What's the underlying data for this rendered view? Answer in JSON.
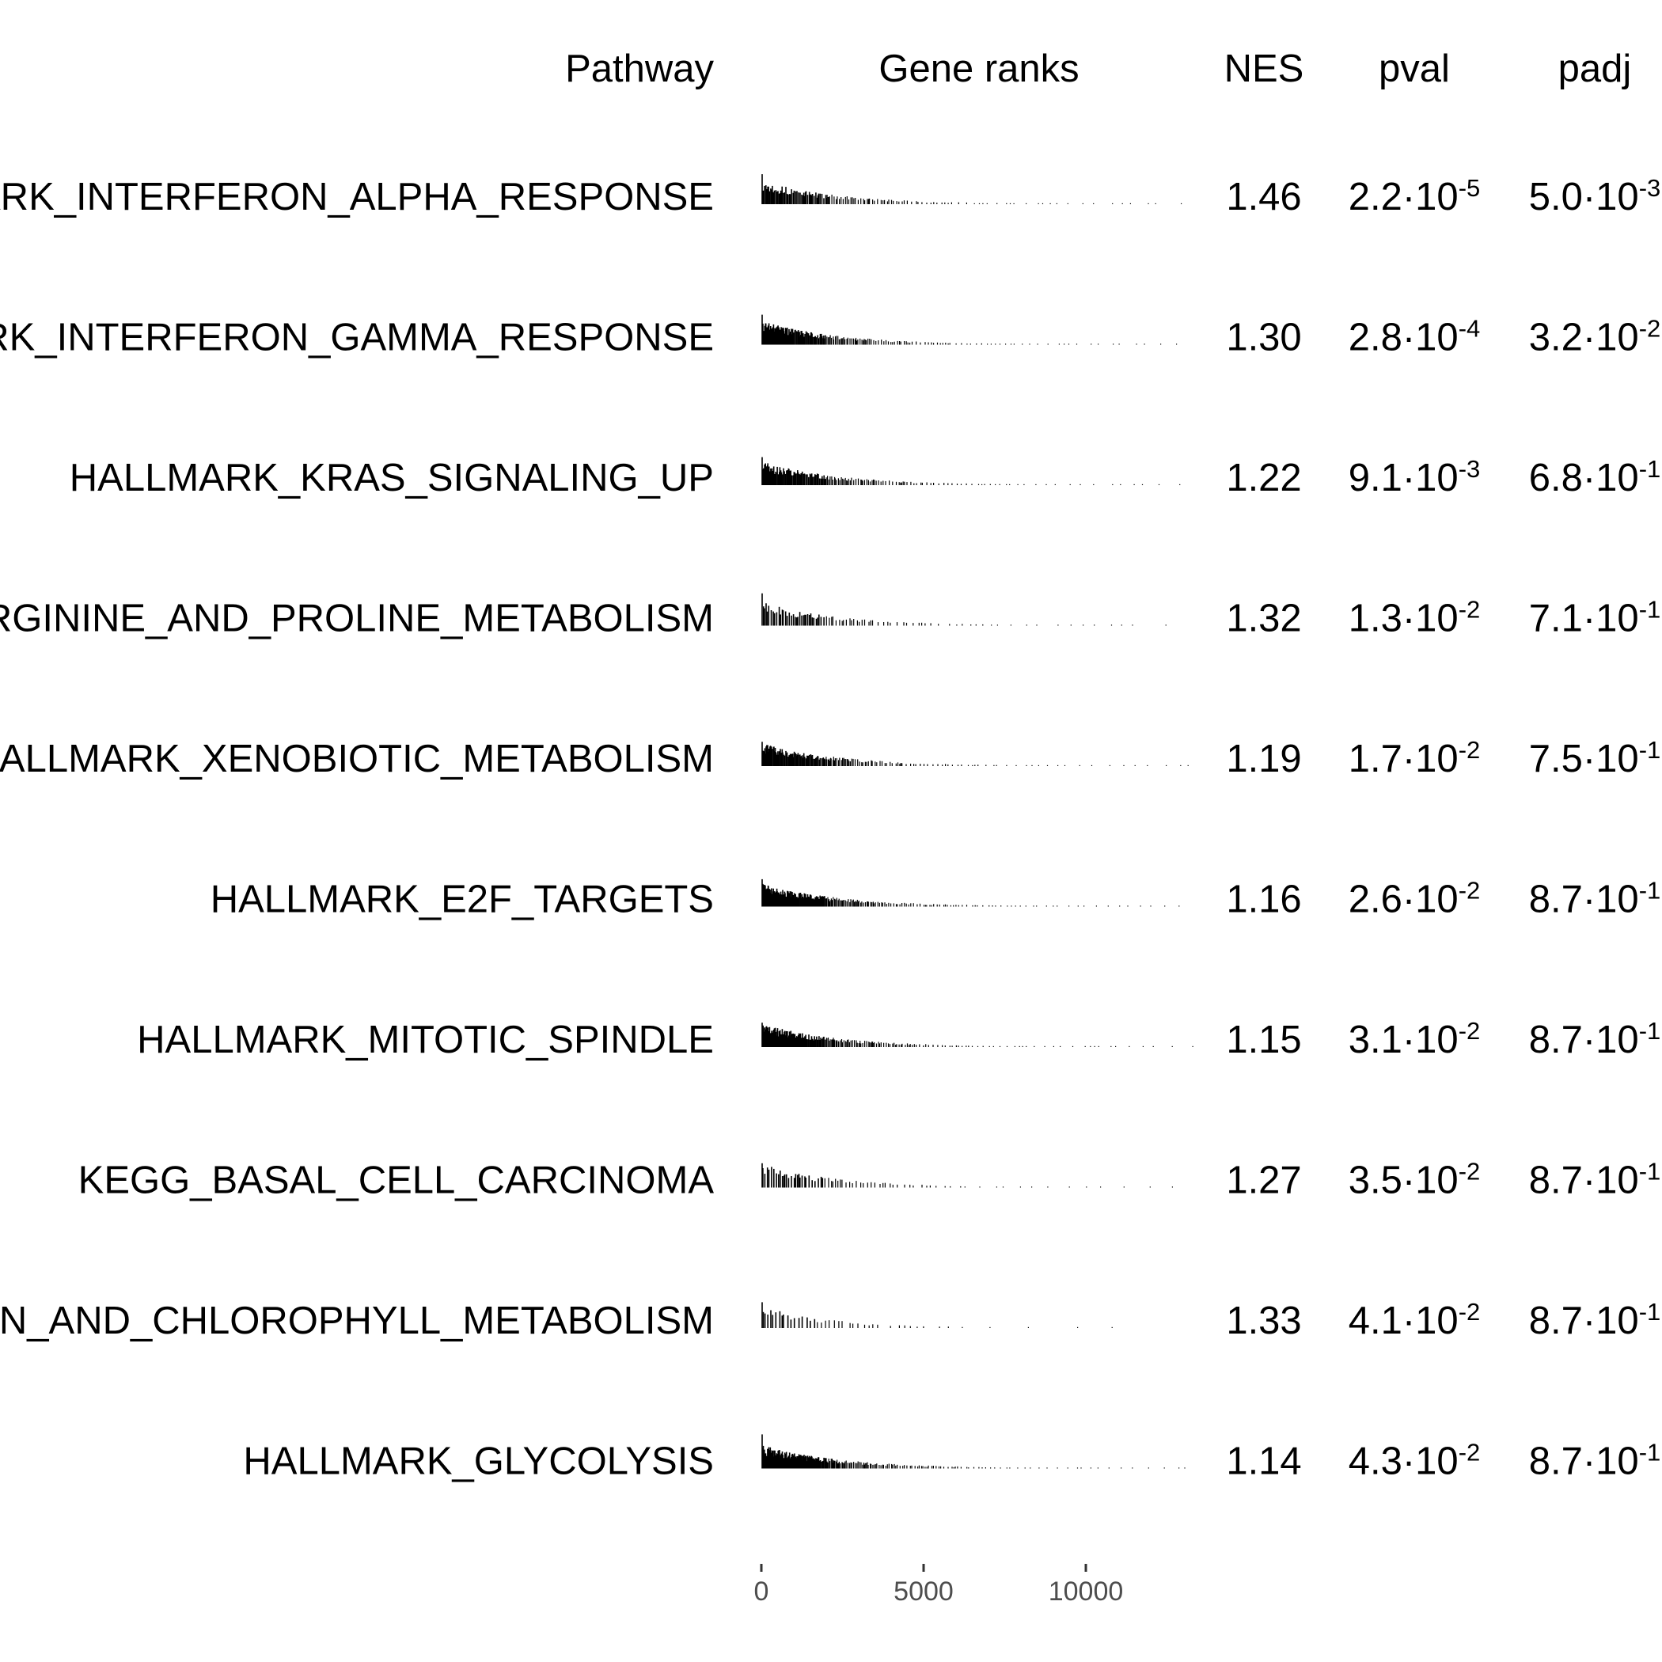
{
  "chart_data": {
    "type": "table",
    "columns": {
      "pathway": "Pathway",
      "gene_ranks": "Gene ranks",
      "nes": "NES",
      "pval": "pval",
      "padj": "padj"
    },
    "rows": [
      {
        "pathway": "HALLMARK_INTERFERON_ALPHA_RESPONSE",
        "nes": "1.46",
        "pval": {
          "mantissa": "2.2",
          "exponent": "-5"
        },
        "padj": {
          "mantissa": "5.0",
          "exponent": "-3"
        },
        "density": 1.0,
        "spread": 0.55,
        "max_rank": 13300
      },
      {
        "pathway": "HALLMARK_INTERFERON_GAMMA_RESPONSE",
        "nes": "1.30",
        "pval": {
          "mantissa": "2.8",
          "exponent": "-4"
        },
        "padj": {
          "mantissa": "3.2",
          "exponent": "-2"
        },
        "density": 1.4,
        "spread": 0.45,
        "max_rank": 13300
      },
      {
        "pathway": "HALLMARK_KRAS_SIGNALING_UP",
        "nes": "1.22",
        "pval": {
          "mantissa": "9.1",
          "exponent": "-3"
        },
        "padj": {
          "mantissa": "6.8",
          "exponent": "-1"
        },
        "density": 1.3,
        "spread": 0.45,
        "max_rank": 13300
      },
      {
        "pathway": "KEGG_ARGININE_AND_PROLINE_METABOLISM",
        "nes": "1.32",
        "pval": {
          "mantissa": "1.3",
          "exponent": "-2"
        },
        "padj": {
          "mantissa": "7.1",
          "exponent": "-1"
        },
        "density": 0.6,
        "spread": 0.6,
        "max_rank": 13000
      },
      {
        "pathway": "HALLMARK_XENOBIOTIC_METABOLISM",
        "nes": "1.19",
        "pval": {
          "mantissa": "1.7",
          "exponent": "-2"
        },
        "padj": {
          "mantissa": "7.5",
          "exponent": "-1"
        },
        "density": 1.3,
        "spread": 0.45,
        "max_rank": 13300
      },
      {
        "pathway": "HALLMARK_E2F_TARGETS",
        "nes": "1.16",
        "pval": {
          "mantissa": "2.6",
          "exponent": "-2"
        },
        "padj": {
          "mantissa": "8.7",
          "exponent": "-1"
        },
        "density": 1.8,
        "spread": 0.4,
        "max_rank": 13300
      },
      {
        "pathway": "HALLMARK_MITOTIC_SPINDLE",
        "nes": "1.15",
        "pval": {
          "mantissa": "3.1",
          "exponent": "-2"
        },
        "padj": {
          "mantissa": "8.7",
          "exponent": "-1"
        },
        "density": 1.8,
        "spread": 0.4,
        "max_rank": 13300
      },
      {
        "pathway": "KEGG_BASAL_CELL_CARCINOMA",
        "nes": "1.27",
        "pval": {
          "mantissa": "3.5",
          "exponent": "-2"
        },
        "padj": {
          "mantissa": "8.7",
          "exponent": "-1"
        },
        "density": 0.55,
        "spread": 0.55,
        "max_rank": 13000
      },
      {
        "pathway": "KEGG_PORPHYRIN_AND_CHLOROPHYLL_METABOLISM",
        "nes": "1.33",
        "pval": {
          "mantissa": "4.1",
          "exponent": "-2"
        },
        "padj": {
          "mantissa": "8.7",
          "exponent": "-1"
        },
        "density": 0.35,
        "spread": 0.55,
        "max_rank": 11300
      },
      {
        "pathway": "HALLMARK_GLYCOLYSIS",
        "nes": "1.14",
        "pval": {
          "mantissa": "4.3",
          "exponent": "-2"
        },
        "padj": {
          "mantissa": "8.7",
          "exponent": "-1"
        },
        "density": 1.8,
        "spread": 0.4,
        "max_rank": 13600
      }
    ],
    "x_axis": {
      "ticks": [
        0,
        5000,
        10000
      ],
      "tick_labels": [
        "0",
        "5000",
        "10000"
      ],
      "range": [
        0,
        13500
      ]
    },
    "colors": {
      "text": "#000000",
      "axis_text": "#4d4d4d",
      "axis_tick": "#333333"
    }
  }
}
